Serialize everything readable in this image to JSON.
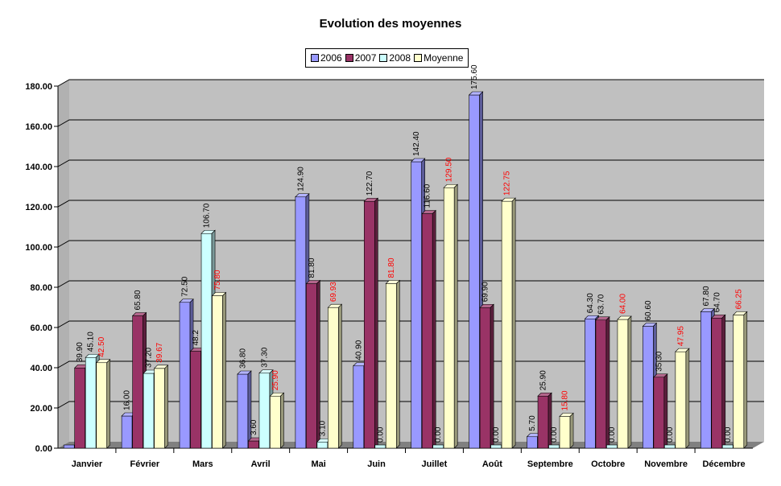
{
  "chart_data": {
    "type": "bar",
    "title": "Evolution des moyennes",
    "categories": [
      "Janvier",
      "Février",
      "Mars",
      "Avril",
      "Mai",
      "Juin",
      "Juillet",
      "Août",
      "Septembre",
      "Octobre",
      "Novembre",
      "Décembre"
    ],
    "series": [
      {
        "name": "2006",
        "color": "#9999ff",
        "values": [
          0,
          16.0,
          72.5,
          36.8,
          124.9,
          40.9,
          142.4,
          175.6,
          5.7,
          64.3,
          60.6,
          67.8
        ],
        "labels": [
          "",
          "16.00",
          "72.50",
          "36.80",
          "124.90",
          "40.90",
          "142.40",
          "175.60",
          "5.70",
          "64.30",
          "60.60",
          "67.80"
        ]
      },
      {
        "name": "2007",
        "color": "#993366",
        "values": [
          39.9,
          65.8,
          48.2,
          3.6,
          81.8,
          122.7,
          116.6,
          69.9,
          25.9,
          63.7,
          35.3,
          64.7
        ],
        "labels": [
          "39.90",
          "65.80",
          "48.2",
          "3.60",
          "81.80",
          "122.70",
          "116.60",
          "69.90",
          "25.90",
          "63.70",
          "35.30",
          "64.70"
        ]
      },
      {
        "name": "2008",
        "color": "#ccffff",
        "values": [
          45.1,
          37.2,
          106.7,
          37.3,
          3.1,
          0,
          0,
          0,
          0,
          0,
          0,
          0
        ],
        "labels": [
          "45.10",
          "37.20",
          "106.70",
          "37.30",
          "3.10",
          "0.00",
          "0.00",
          "0.00",
          "0.00",
          "0.00",
          "0.00",
          "0.00"
        ]
      },
      {
        "name": "Moyenne",
        "color": "#ffffcc",
        "values": [
          42.5,
          39.67,
          75.8,
          25.9,
          69.93,
          81.8,
          129.5,
          122.75,
          15.8,
          64.0,
          47.95,
          66.25
        ],
        "labels": [
          "42.50",
          "39.67",
          "75.80",
          "25.90",
          "69.93",
          "81.80",
          "129.50",
          "122.75",
          "15.80",
          "64.00",
          "47.95",
          "66.25"
        ]
      }
    ],
    "ylim": [
      0,
      180
    ],
    "yticks": [
      "0.00",
      "20.00",
      "40.00",
      "60.00",
      "80.00",
      "100.00",
      "120.00",
      "140.00",
      "160.00",
      "180.00"
    ],
    "xlabel": "",
    "ylabel": "",
    "grid": true,
    "legend_position": "top-center",
    "wall_color": "#c0c0c0",
    "floor_color": "#808080",
    "average_label_color": "#ff0000"
  }
}
